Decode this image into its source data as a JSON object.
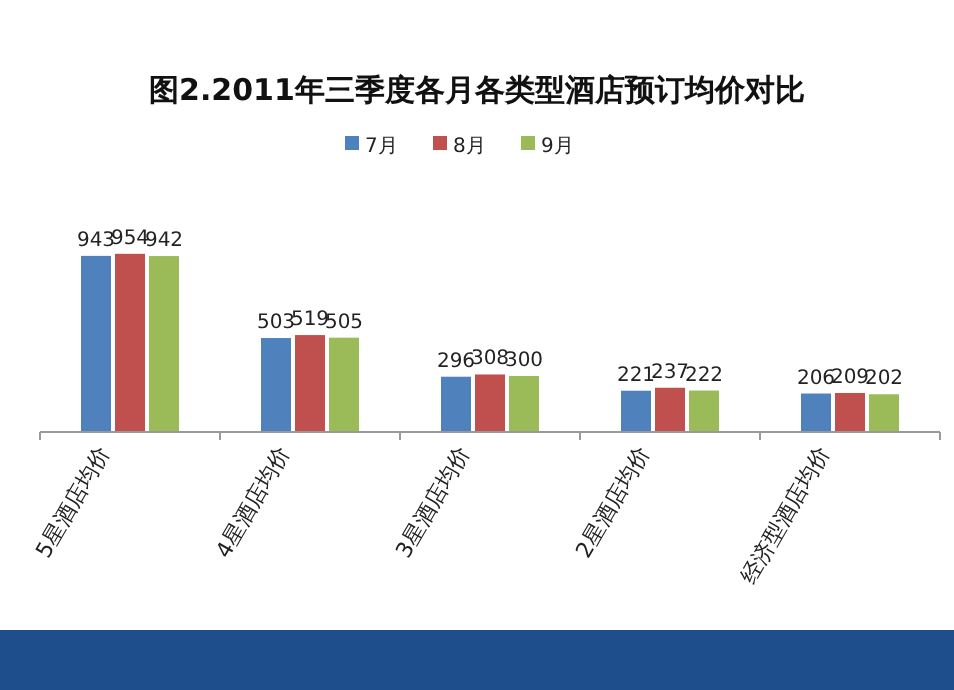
{
  "chart_data": {
    "type": "bar",
    "title": "图2.2011年三季度各月各类型酒店预订均价对比",
    "categories": [
      "5星酒店均价",
      "4星酒店均价",
      "3星酒店均价",
      "2星酒店均价",
      "经济型酒店均价"
    ],
    "series": [
      {
        "name": "7月",
        "color": "#4f81bd",
        "values": [
          943,
          503,
          296,
          221,
          206
        ]
      },
      {
        "name": "8月",
        "color": "#c0504d",
        "values": [
          954,
          519,
          308,
          237,
          209
        ]
      },
      {
        "name": "9月",
        "color": "#9bbb59",
        "values": [
          942,
          505,
          300,
          222,
          202
        ]
      }
    ],
    "data_labels": true,
    "legend": "top",
    "grid": false
  }
}
